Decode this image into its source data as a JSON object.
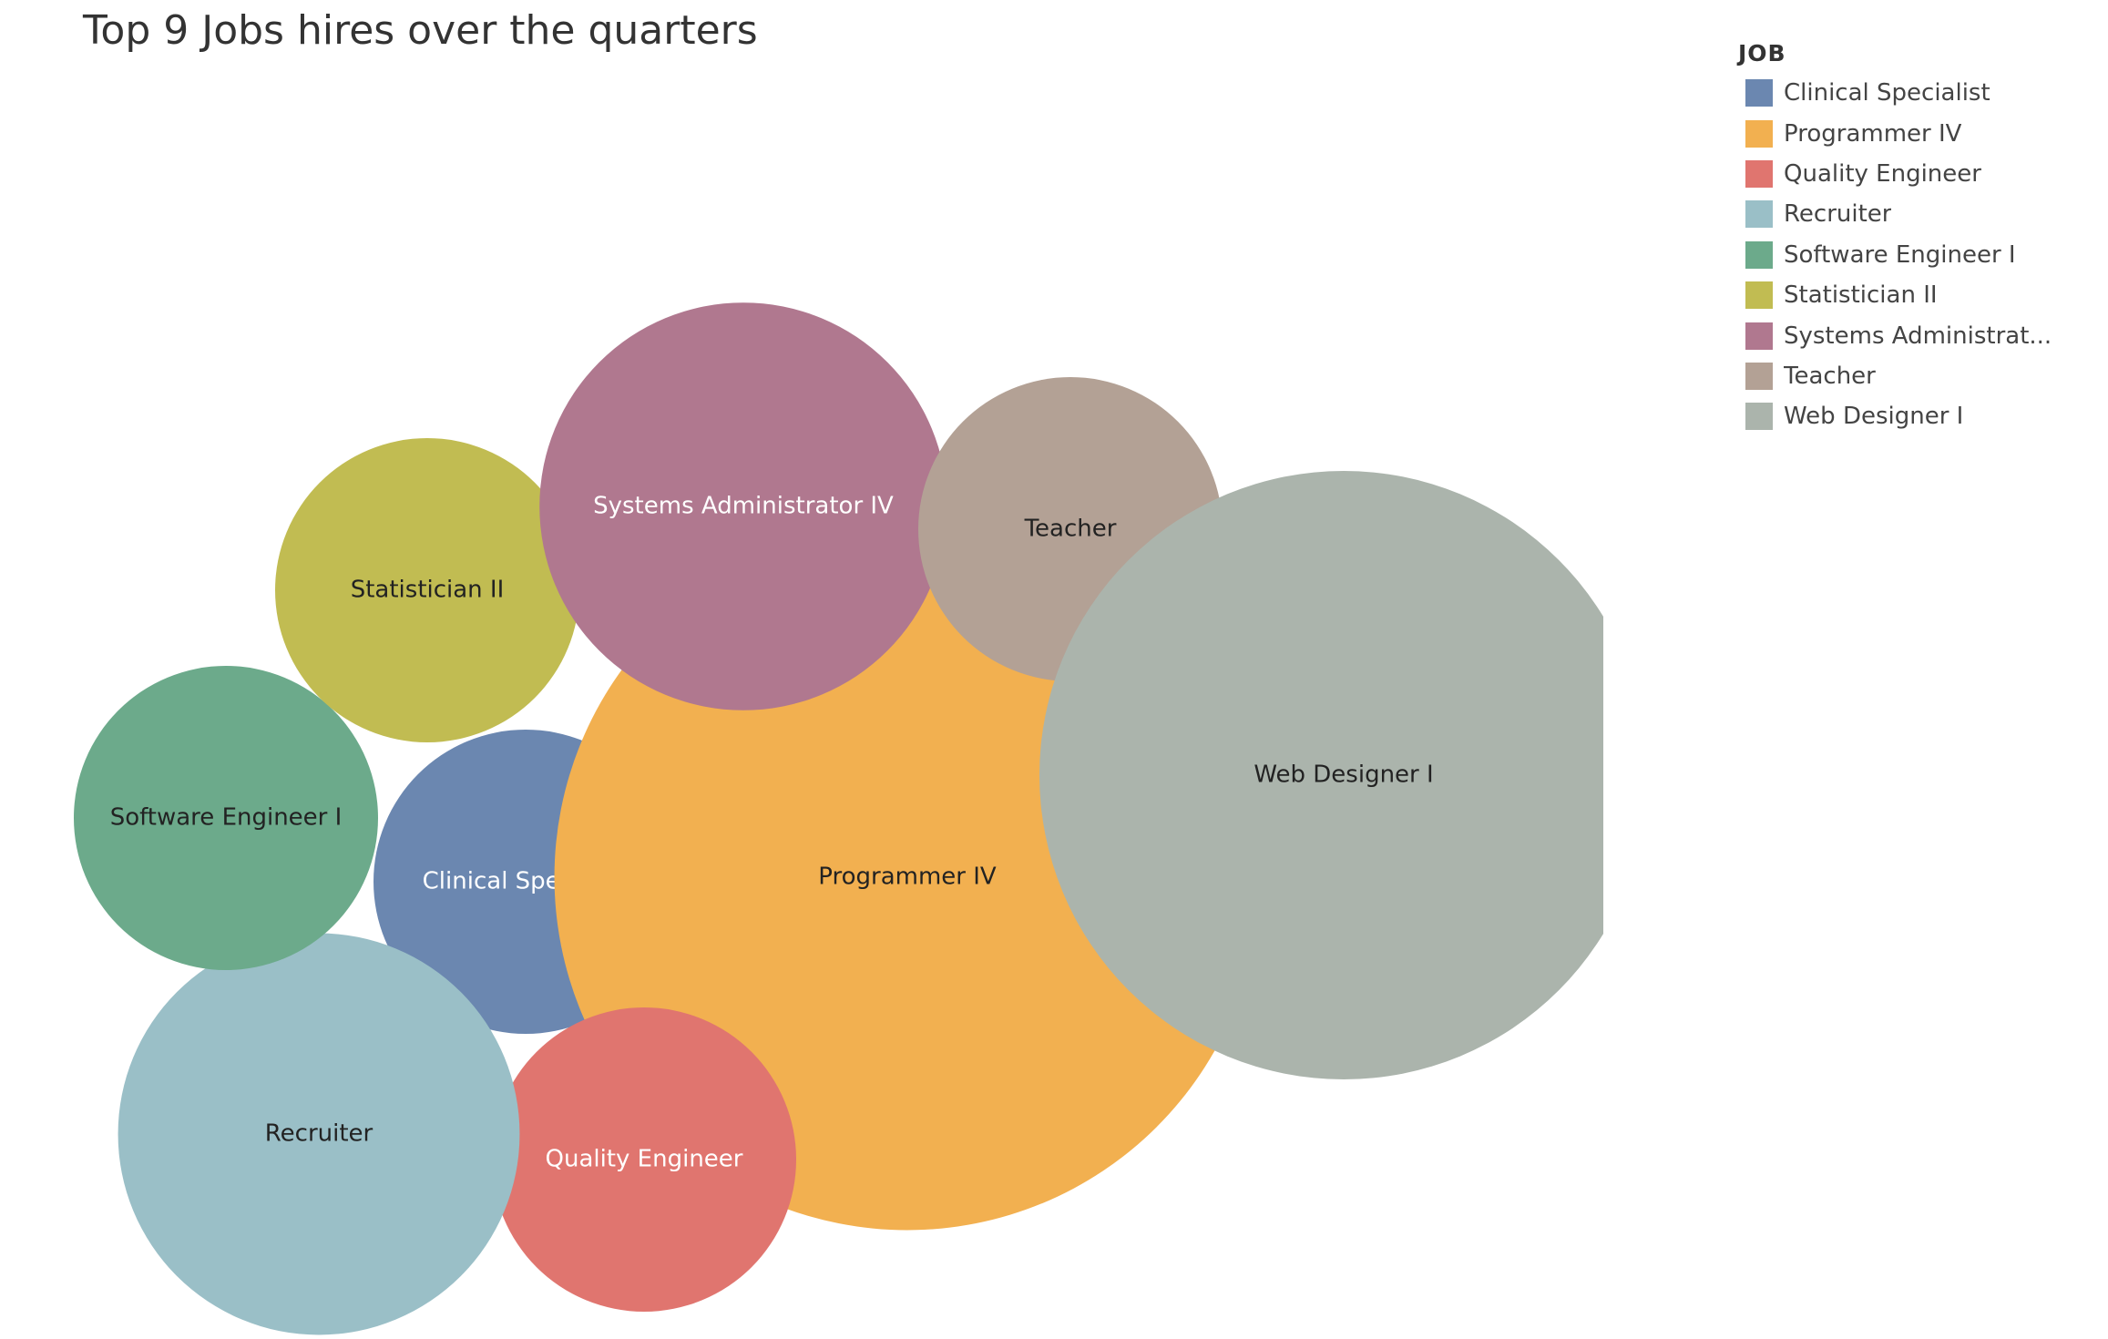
{
  "chart_data": {
    "type": "bubble",
    "title": "Top 9 Jobs hires over the quarters",
    "legend_title": "JOB",
    "legend_position": "top-right",
    "categories": [
      "Clinical Specialist",
      "Programmer IV",
      "Quality Engineer",
      "Recruiter",
      "Software Engineer I",
      "Statistician II",
      "Systems Administrator IV",
      "Teacher",
      "Web Designer I"
    ],
    "legend_labels": [
      "Clinical Specialist",
      "Programmer IV",
      "Quality Engineer",
      "Recruiter",
      "Software Engineer I",
      "Statistician II",
      "Systems Administrat...",
      "Teacher",
      "Web Designer I"
    ],
    "colors": [
      "#6b87b0",
      "#f2b050",
      "#e0756f",
      "#9abfc7",
      "#6caa8b",
      "#c1bc52",
      "#b0788f",
      "#b3a195",
      "#abb4ac"
    ],
    "label_colors": [
      "#ffffff",
      "#222222",
      "#ffffff",
      "#222222",
      "#222222",
      "#222222",
      "#ffffff",
      "#222222",
      "#222222"
    ],
    "relative_size": [
      0.5,
      1.16,
      0.5,
      0.66,
      0.5,
      0.5,
      0.67,
      0.5,
      1.0
    ]
  }
}
